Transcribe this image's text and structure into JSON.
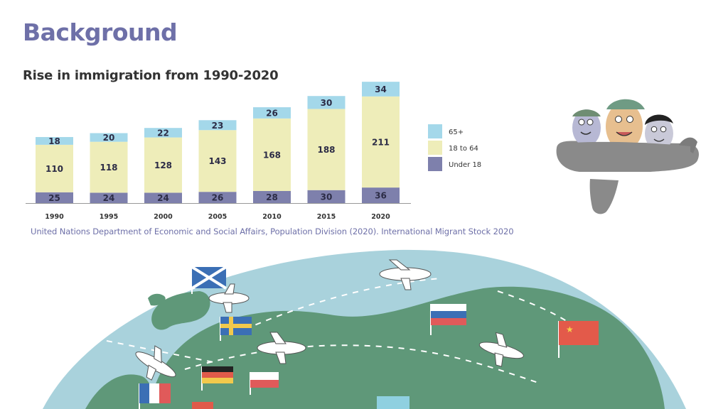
{
  "header": {
    "title": "Background",
    "subtitle": "Rise in immigration from 1990-2020"
  },
  "source": "United Nations Department of Economic and Social Affairs, Population Division (2020). International Migrant Stock 2020",
  "colors": {
    "title": "#6e70a8",
    "under18": "#7e80ac",
    "age18to64": "#eeedb9",
    "age65plus": "#a4d8ea",
    "sea": "#a9d2dc",
    "land": "#5f9879"
  },
  "chart_data": {
    "type": "bar",
    "stacked": true,
    "categories": [
      "1990",
      "1995",
      "2000",
      "2005",
      "2010",
      "2015",
      "2020"
    ],
    "series": [
      {
        "name": "Under 18",
        "values": [
          25,
          24,
          24,
          26,
          28,
          30,
          36
        ]
      },
      {
        "name": "18 to 64",
        "values": [
          110,
          118,
          128,
          143,
          168,
          188,
          211
        ]
      },
      {
        "name": "65+",
        "values": [
          18,
          20,
          22,
          23,
          26,
          30,
          34
        ]
      }
    ],
    "legend_position": "right",
    "grid": false
  },
  "illustrations": {
    "plane_passengers_icon": "fingerprint-passengers-on-plane-icon",
    "globe_icon": "globe-with-planes-and-flags-icon"
  }
}
